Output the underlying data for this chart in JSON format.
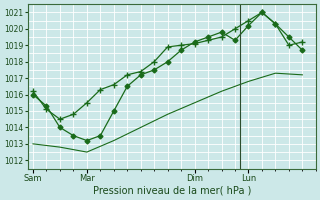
{
  "title": "",
  "xlabel": "Pression niveau de la mer( hPa )",
  "bg_color": "#cce8e8",
  "grid_color": "#ffffff",
  "line_color": "#1a6b1a",
  "ylim": [
    1011.5,
    1021.5
  ],
  "yticks": [
    1012,
    1013,
    1014,
    1015,
    1016,
    1017,
    1018,
    1019,
    1020,
    1021
  ],
  "day_labels": [
    "Sam",
    "Mar",
    "Dim",
    "Lun"
  ],
  "day_positions": [
    0,
    2,
    6,
    8
  ],
  "series1_x": [
    0,
    0.5,
    1.0,
    1.5,
    2.0,
    2.5,
    3.0,
    3.5,
    4.0,
    4.5,
    5.0,
    5.5,
    6.0,
    6.5,
    7.0,
    7.5,
    8.0,
    8.5,
    9.0,
    9.5,
    10.0
  ],
  "series1_y": [
    1016.2,
    1015.1,
    1014.5,
    1014.8,
    1015.5,
    1016.3,
    1016.6,
    1017.2,
    1017.4,
    1018.0,
    1018.9,
    1019.0,
    1019.1,
    1019.3,
    1019.5,
    1020.0,
    1020.5,
    1021.0,
    1020.3,
    1019.0,
    1019.2
  ],
  "series2_x": [
    0,
    0.5,
    1.0,
    1.5,
    2.0,
    2.5,
    3.0,
    3.5,
    4.0,
    4.5,
    5.0,
    5.5,
    6.0,
    6.5,
    7.0,
    7.5,
    8.0,
    8.5,
    9.0,
    9.5,
    10.0
  ],
  "series2_y": [
    1016.0,
    1015.3,
    1014.0,
    1013.5,
    1013.2,
    1013.5,
    1015.0,
    1016.5,
    1017.2,
    1017.5,
    1018.0,
    1018.7,
    1019.2,
    1019.5,
    1019.8,
    1019.3,
    1020.2,
    1021.0,
    1020.3,
    1019.5,
    1018.7
  ],
  "series3_x": [
    0,
    1.0,
    2.0,
    3.0,
    4.0,
    5.0,
    6.0,
    7.0,
    8.0,
    9.0,
    10.0
  ],
  "series3_y": [
    1013.0,
    1012.8,
    1012.5,
    1013.2,
    1014.0,
    1014.8,
    1015.5,
    1016.2,
    1016.8,
    1017.3,
    1017.2
  ],
  "vline_x": 7.7,
  "xlim": [
    -0.2,
    10.5
  ]
}
